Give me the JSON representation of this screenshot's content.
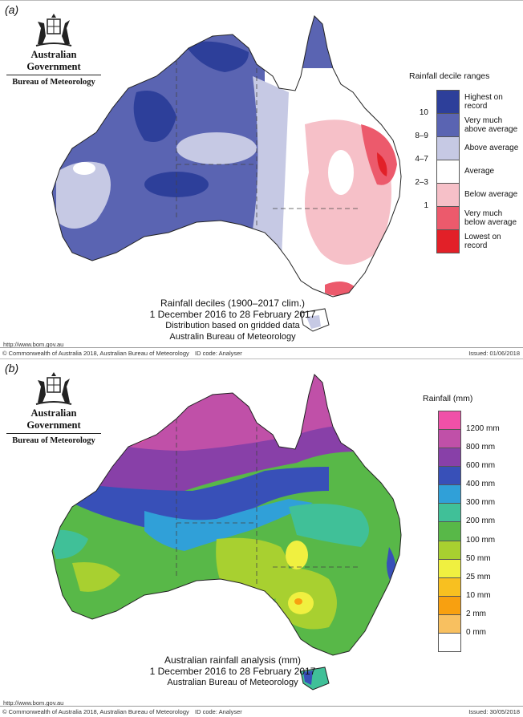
{
  "panel_a": {
    "label": "(a)",
    "logo": {
      "government": "Australian Government",
      "bureau": "Bureau of Meteorology"
    },
    "legend_title": "Rainfall decile ranges",
    "legend_items": [
      {
        "label": "Highest on\nrecord",
        "color": "#2d3f9a"
      },
      {
        "label": "Very much\nabove average",
        "color": "#5a64b2"
      },
      {
        "label": "Above average",
        "color": "#c6c9e4"
      },
      {
        "label": "Average",
        "color": "#ffffff"
      },
      {
        "label": "Below average",
        "color": "#f6c0c8"
      },
      {
        "label": "Very much\nbelow average",
        "color": "#ec5a6c"
      },
      {
        "label": "Lowest on\nrecord",
        "color": "#e22028"
      }
    ],
    "legend_ticks": [
      "10",
      "8–9",
      "4–7",
      "2–3",
      "1"
    ],
    "caption": [
      "Rainfall deciles (1900–2017 clim.)",
      "1 December 2016 to 28 February 2017",
      "Distribution based on gridded data",
      "Australin Bureau of Meteorology"
    ],
    "url": "http://www.bom.gov.au",
    "footer": {
      "copyright": "© Commonwealth of Australia 2018, Australian Bureau of Meteorology",
      "id_code": "ID code: Analyser",
      "issued": "Issued: 01/06/2018"
    }
  },
  "panel_b": {
    "label": "(b)",
    "logo": {
      "government": "Australian Government",
      "bureau": "Bureau of Meteorology"
    },
    "legend_title": "Rainfall (mm)",
    "legend_colors": [
      "#f050a8",
      "#c050a8",
      "#8840a8",
      "#3850b8",
      "#30a0d8",
      "#40c098",
      "#58b848",
      "#a8d030",
      "#f0f040",
      "#f8c020",
      "#f8a010",
      "#f8c060",
      "#ffffff"
    ],
    "legend_labels": [
      "1200 mm",
      "800 mm",
      "600 mm",
      "400 mm",
      "300 mm",
      "200 mm",
      "100 mm",
      "50 mm",
      "25 mm",
      "10 mm",
      "2 mm",
      "0 mm"
    ],
    "caption": [
      "Australian rainfall analysis (mm)",
      "1 December 2016 to 28 February 2017",
      "Australian Bureau of Meteorology"
    ],
    "url": "http://www.bom.gov.au",
    "footer": {
      "copyright": "© Commonwealth of Australia 2018, Australian Bureau of Meteorology",
      "id_code": "ID code: Analyser",
      "issued": "Issued: 30/05/2018"
    }
  }
}
